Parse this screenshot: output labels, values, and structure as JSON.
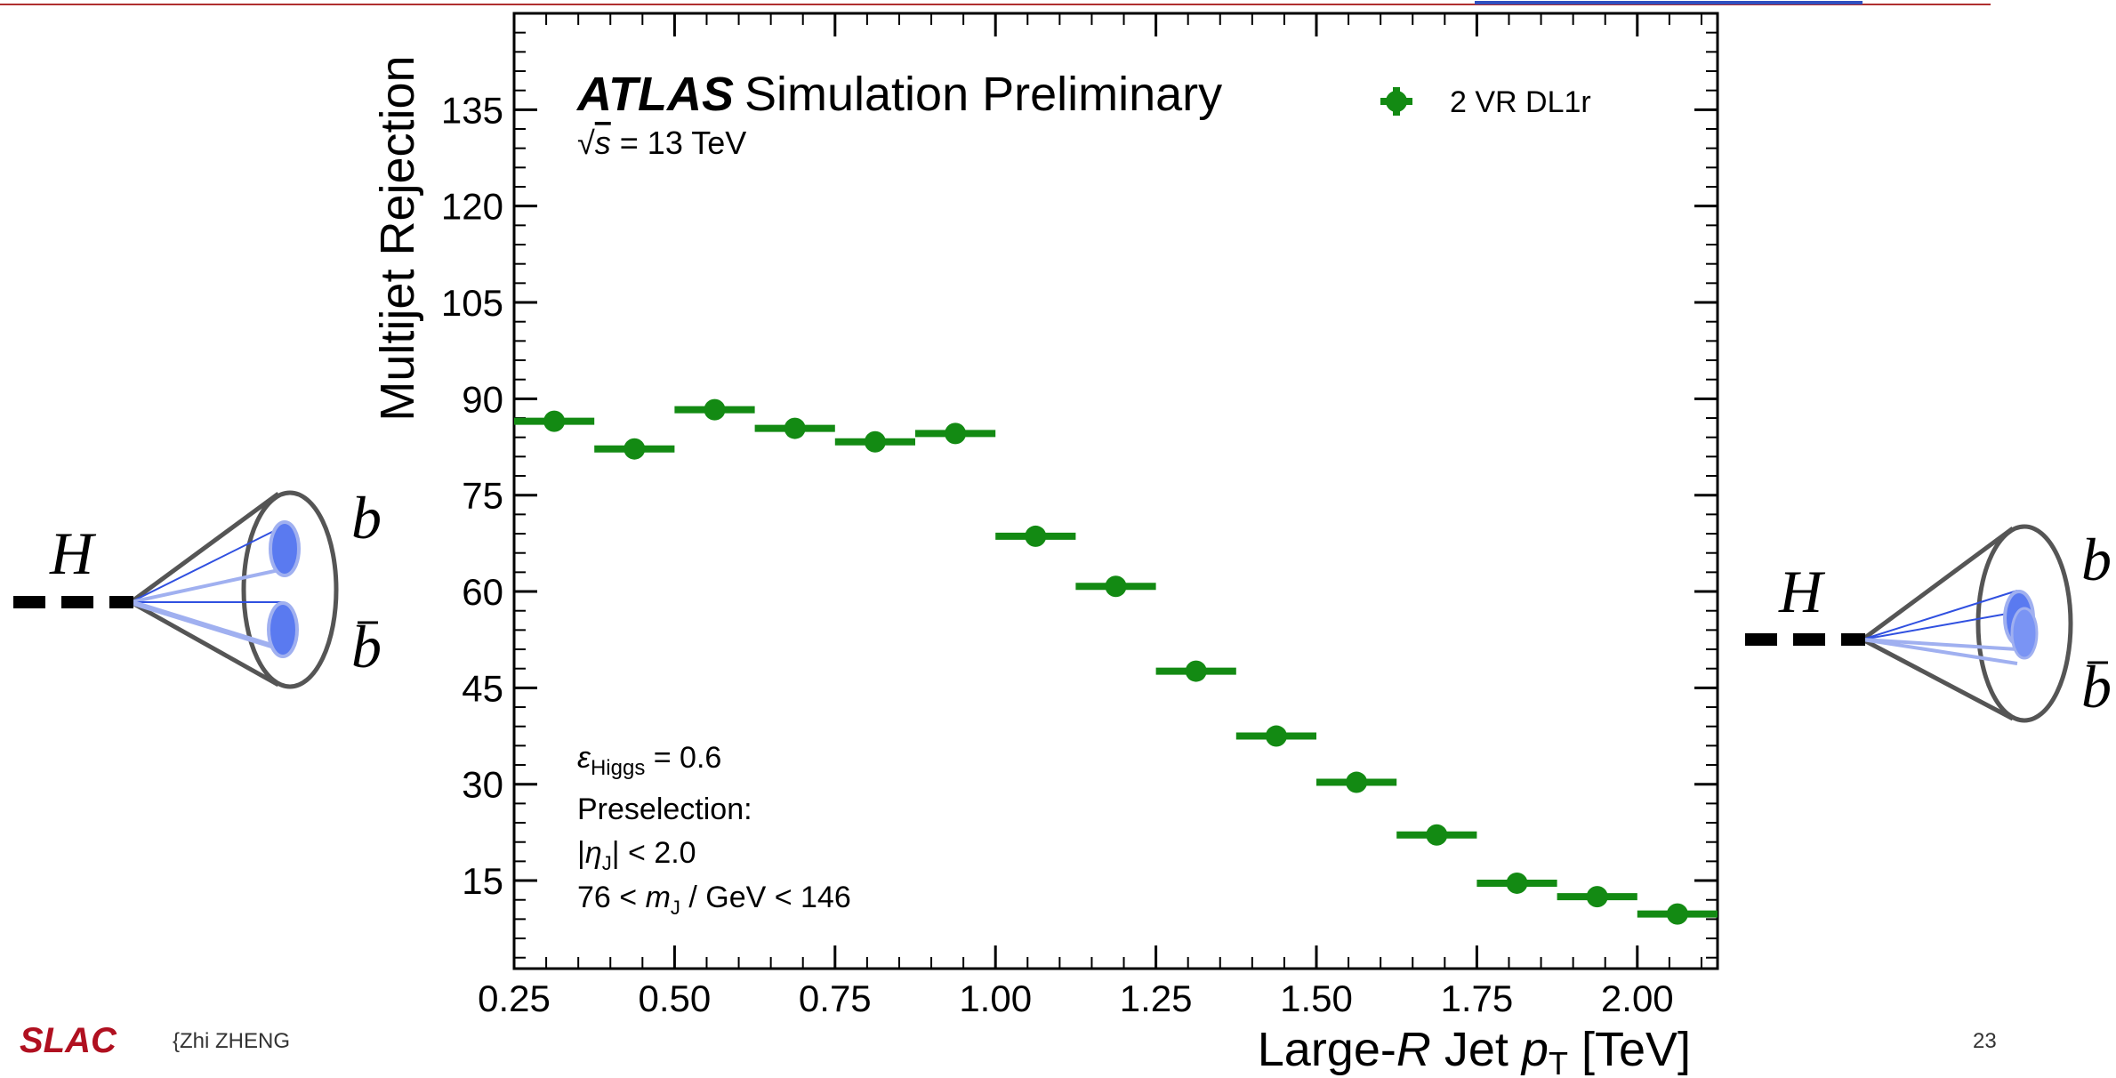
{
  "chart_data": {
    "type": "histogram",
    "title": {
      "experiment": "ATLAS",
      "label": "Simulation Preliminary"
    },
    "energy": [
      "√",
      "s",
      " = 13 TeV"
    ],
    "annotations": [
      [
        "ε",
        "Higgs",
        " = 0.6"
      ],
      [
        "Preselection:"
      ],
      [
        "|",
        "η",
        "J",
        "| < 2.0"
      ],
      [
        "76 < ",
        "m",
        "J",
        " / GeV < 146"
      ]
    ],
    "y_label": "Multijet Rejection",
    "x_label": [
      "Large-",
      "R",
      " Jet ",
      "p",
      "T",
      " [TeV]"
    ],
    "bins": [
      0.25,
      0.375,
      0.5,
      0.625,
      0.75,
      0.875,
      1.0,
      1.125,
      1.25,
      1.375,
      1.5,
      1.625,
      1.75,
      1.875,
      2.0,
      2.125
    ],
    "series": [
      {
        "name": "2 VR DL1r",
        "color": "#138a13",
        "values": [
          86.5,
          82.2,
          88.3,
          85.4,
          83.3,
          84.6,
          68.6,
          60.8,
          47.6,
          37.5,
          30.3,
          22.1,
          14.6,
          12.5,
          9.8
        ]
      }
    ],
    "xlim": [
      0.25,
      2.125
    ],
    "xticks": [
      0.25,
      {
        "value": 0.5,
        "label": "0.50"
      },
      0.75,
      {
        "value": 1.0,
        "label": "1.00"
      },
      1.25,
      {
        "value": 1.5,
        "label": "1.50"
      },
      1.75,
      {
        "value": 2.0,
        "label": "2.00"
      }
    ],
    "ylim": [
      1.3,
      150
    ],
    "yticks": [
      15,
      30,
      45,
      60,
      75,
      90,
      105,
      120,
      135
    ],
    "legend": "upper right"
  },
  "slide": {
    "logo": "SLAC",
    "author": "{Zhi ZHENG",
    "page_number": "23",
    "left_diagram": {
      "boson": "H",
      "quark": "b",
      "antiquark": "b"
    },
    "right_diagram": {
      "boson": "H",
      "quark": "b",
      "antiquark": "b"
    }
  }
}
